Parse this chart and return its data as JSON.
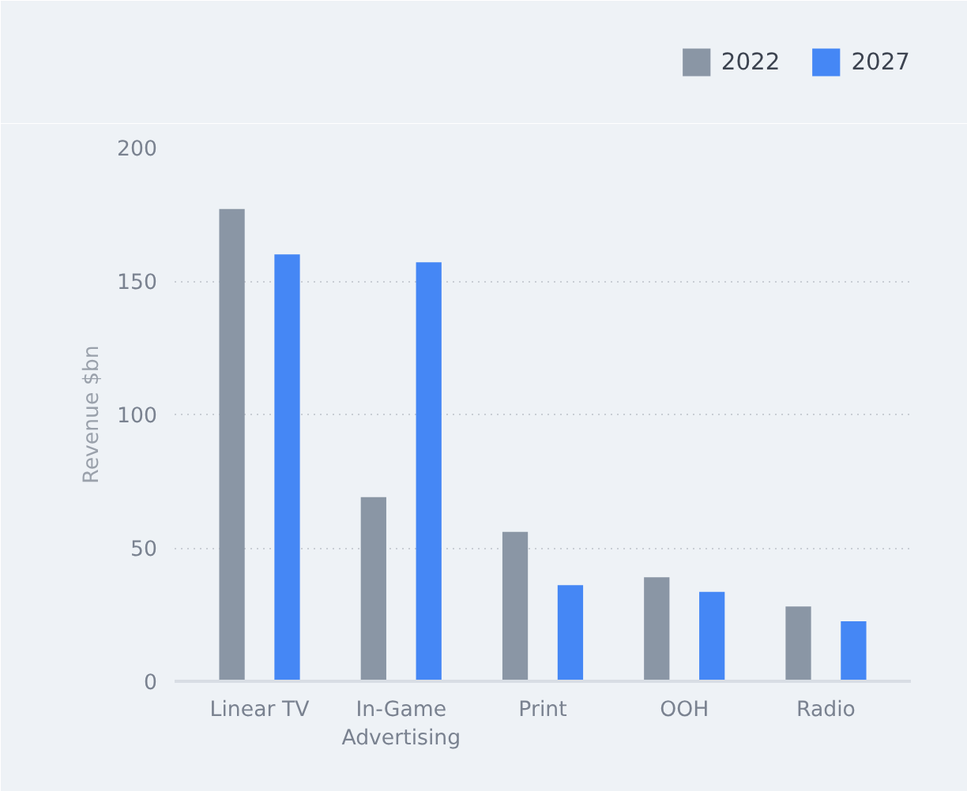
{
  "chart_data": {
    "type": "bar",
    "ylabel": "Revenue $bn",
    "categories": [
      "Linear TV",
      "In-Game\nAdvertising",
      "Print",
      "OOH",
      "Radio"
    ],
    "series": [
      {
        "name": "2022",
        "color": "#8a96a5",
        "values": [
          177,
          69,
          56,
          39,
          28
        ]
      },
      {
        "name": "2027",
        "color": "#4587f5",
        "values": [
          160,
          157,
          36,
          33.5,
          22.5
        ]
      }
    ],
    "ylim": [
      0,
      200
    ],
    "yticks": [
      0,
      50,
      100,
      150,
      200
    ],
    "grid": "y",
    "legend": "top right"
  }
}
